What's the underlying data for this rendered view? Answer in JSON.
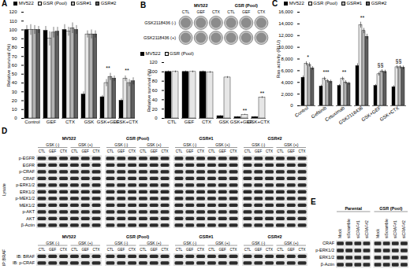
{
  "chart_data": [
    {
      "type": "bar",
      "title": "A",
      "legend": "top",
      "grid": false,
      "y_label": "Relative survival (%)",
      "categories": [
        "Control",
        "GEF",
        "CTX",
        "GSK",
        "GSK+GEF",
        "GSK+CTX"
      ],
      "ylim": [
        0,
        120
      ],
      "yticks": [
        0,
        10,
        20,
        30,
        40,
        50,
        60,
        70,
        80,
        90,
        100,
        110,
        120
      ],
      "series": [
        {
          "name": "MV522",
          "color": "#000000",
          "values": [
            100,
            99,
            100,
            27,
            24,
            20
          ],
          "errors": [
            5,
            5,
            6,
            3,
            2,
            2
          ]
        },
        {
          "name": "GSR (Pool)",
          "color": "#e6e6e6",
          "values": [
            100,
            90,
            98,
            95,
            40,
            45
          ],
          "errors": [
            6,
            8,
            5,
            4,
            4,
            3
          ]
        },
        {
          "name": "GSR#1",
          "color": "#b3b3b3",
          "values": [
            100,
            97,
            102,
            95,
            47,
            40
          ],
          "errors": [
            5,
            6,
            6,
            5,
            4,
            4
          ]
        },
        {
          "name": "GSR#2",
          "color": "#5f5f5f",
          "values": [
            100,
            98,
            100,
            95,
            45,
            42
          ],
          "errors": [
            4,
            5,
            5,
            4,
            3,
            4
          ]
        }
      ],
      "annotations": [
        {
          "text": "**",
          "category": "GSK+GEF"
        },
        {
          "text": "**",
          "category": "GSK+CTX"
        }
      ]
    },
    {
      "type": "bar",
      "legend": "top",
      "grid": false,
      "y_label": "Relative survival (%)",
      "categories": [
        "CTL",
        "GEF",
        "CTX",
        "GSK",
        "GSK+GEF",
        "GSK+CTX"
      ],
      "ylim": [
        0,
        120
      ],
      "yticks": [
        0,
        20,
        40,
        60,
        80,
        100,
        120
      ],
      "series": [
        {
          "name": "MV522",
          "color": "#000000",
          "values": [
            100,
            100,
            100,
            5,
            3,
            3
          ],
          "errors": [
            2,
            2,
            2,
            1,
            1,
            1
          ]
        },
        {
          "name": "GSR (Pool)",
          "color": "#e6e6e6",
          "values": [
            100,
            100,
            99,
            88,
            8,
            45
          ],
          "errors": [
            2,
            2,
            2,
            2,
            1,
            2
          ]
        }
      ],
      "annotations": [
        {
          "text": "**",
          "category": "GSK+GEF",
          "series": "GSR (Pool)"
        },
        {
          "text": "**",
          "category": "GSK+CTX",
          "series": "GSR (Pool)"
        }
      ]
    },
    {
      "type": "bar",
      "title": "C",
      "legend": "top",
      "grid": false,
      "y_label": "Ras activity (RLU)",
      "categories": [
        "Control",
        "Gefitinib",
        "Cetuximab",
        "GSK2118436",
        "GSK+GEF",
        "GSK+CTX"
      ],
      "ylim": [
        0,
        16000
      ],
      "yticks": [
        0,
        {
          "value": 2000,
          "label": "2,000"
        },
        {
          "value": 4000,
          "label": "4,000"
        },
        {
          "value": 6000,
          "label": "6,000"
        },
        {
          "value": 8000,
          "label": "8,000"
        },
        {
          "value": 10000,
          "label": "10,000"
        },
        {
          "value": 12000,
          "label": "12,000"
        },
        {
          "value": 14000,
          "label": "14,000"
        },
        {
          "value": 16000,
          "label": "16,000"
        }
      ],
      "series": [
        {
          "name": "MV522",
          "color": "#000000",
          "values": [
            4800,
            3300,
            3400,
            6800,
            3400,
            3200
          ],
          "errors": [
            300,
            250,
            250,
            400,
            250,
            250
          ]
        },
        {
          "name": "GSR (Pool)",
          "color": "#e6e6e6",
          "values": [
            7200,
            4600,
            4600,
            13800,
            5400,
            6600
          ],
          "errors": [
            350,
            300,
            300,
            500,
            300,
            300
          ]
        },
        {
          "name": "GSR#1",
          "color": "#b3b3b3",
          "values": [
            7000,
            4200,
            4000,
            12800,
            5900,
            6600
          ],
          "errors": [
            350,
            300,
            300,
            450,
            300,
            300
          ]
        },
        {
          "name": "GSR#2",
          "color": "#5f5f5f",
          "values": [
            6400,
            4100,
            3800,
            11800,
            5800,
            6500
          ],
          "errors": [
            300,
            300,
            250,
            450,
            300,
            300
          ]
        }
      ],
      "annotations": [
        {
          "text": "*",
          "category": "Control"
        },
        {
          "text": "***",
          "category": "Gefitinib"
        },
        {
          "text": "**",
          "category": "Cetuximab"
        },
        {
          "text": "**",
          "category": "GSK2118436"
        },
        {
          "text": "§§",
          "category": "GSK+GEF"
        },
        {
          "text": "§§",
          "category": "GSK+CTX"
        }
      ]
    }
  ],
  "colony_assay": {
    "label": "B",
    "groups": [
      "MV522",
      "GSR (Pool)"
    ],
    "columns": [
      "CTL",
      "GEF",
      "CTX"
    ],
    "rows": [
      "GSK2118436 (-)",
      "GSK2118436 (+)"
    ]
  },
  "blot_D": {
    "label": "D",
    "cell_lines": [
      "MV522",
      "GSR (Pool)",
      "GSR#1",
      "GSR#2"
    ],
    "treatments": [
      "GSK (-)",
      "GSK (+)"
    ],
    "lanes": [
      "CTL",
      "GEF",
      "CTX"
    ],
    "sections": [
      {
        "name": "Lysate",
        "rows": [
          "p-EGFR",
          "EGFR",
          "p-CRAF",
          "CRAF",
          "p-ERK1/2",
          "ERK1/2",
          "p-MEK1/2",
          "MEK1/2",
          "p-AKT",
          "AKT",
          "β-Actin"
        ]
      },
      {
        "name": "IP:BRAF",
        "rows": [
          "IB: BRAF",
          "IB: p-CRAF"
        ]
      }
    ]
  },
  "blot_E": {
    "label": "E",
    "groups": [
      "Parental",
      "GSR (Pool)"
    ],
    "lanes": [
      "Mock",
      "siScramble",
      "siCRAF#1",
      "siCRAF#2"
    ],
    "rows": [
      "CRAF",
      "p-ERK1/2",
      "ERK1/2",
      "β-Actin"
    ]
  }
}
